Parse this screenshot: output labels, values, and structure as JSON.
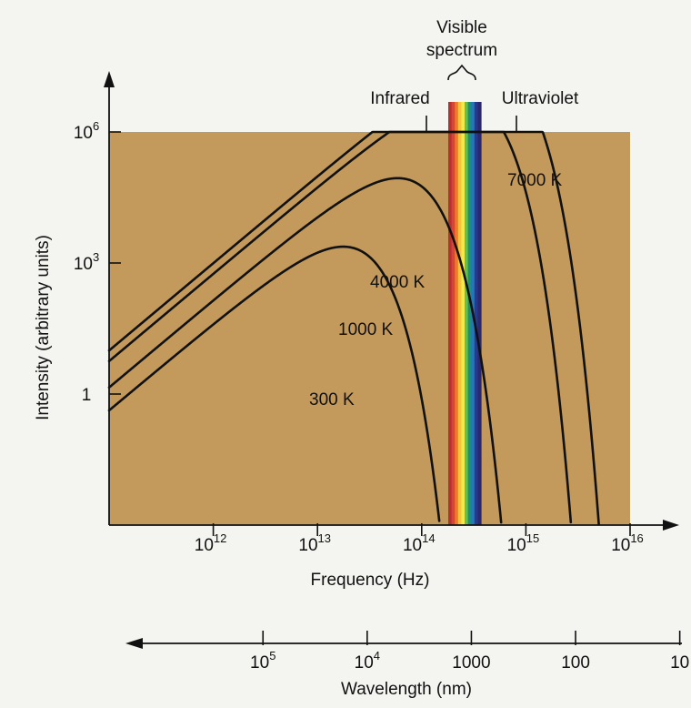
{
  "chart_data": {
    "type": "line",
    "title": "",
    "xlabel": "Frequency (Hz)",
    "ylabel": "Intensity (arbitrary units)",
    "x_scale": "log",
    "y_scale": "log",
    "xlim": [
      100000000000.0,
      1e+16
    ],
    "ylim": [
      0.001,
      1000000.0
    ],
    "x_ticks": [
      {
        "value": 1000000000000.0,
        "base": "10",
        "exp": "12"
      },
      {
        "value": 10000000000000.0,
        "base": "10",
        "exp": "13"
      },
      {
        "value": 100000000000000.0,
        "base": "10",
        "exp": "14"
      },
      {
        "value": 1000000000000000.0,
        "base": "10",
        "exp": "15"
      },
      {
        "value": 1e+16,
        "base": "10",
        "exp": "16"
      }
    ],
    "y_ticks": [
      {
        "value": 1,
        "base": "1",
        "exp": ""
      },
      {
        "value": 1000,
        "base": "10",
        "exp": "3"
      },
      {
        "value": 1000000,
        "base": "10",
        "exp": "6"
      }
    ],
    "secondary_x_axis": {
      "label": "Wavelength (nm)",
      "direction": "increasing to the left",
      "ticks": [
        {
          "value_nm": 100000,
          "base": "10",
          "exp": "5"
        },
        {
          "value_nm": 10000,
          "base": "10",
          "exp": "4"
        },
        {
          "value_nm": 1000,
          "base": "1000",
          "exp": ""
        },
        {
          "value_nm": 100,
          "base": "100",
          "exp": ""
        },
        {
          "value_nm": 10,
          "base": "10",
          "exp": ""
        }
      ]
    },
    "series": [
      {
        "name": "300 K",
        "temperature_K": 300,
        "color": "#111111"
      },
      {
        "name": "1000 K",
        "temperature_K": 1000,
        "color": "#111111"
      },
      {
        "name": "4000 K",
        "temperature_K": 4000,
        "color": "#111111"
      },
      {
        "name": "7000 K",
        "temperature_K": 7000,
        "color": "#111111"
      }
    ],
    "annotations": {
      "visible_label_line1": "Visible",
      "visible_label_line2": "spectrum",
      "infrared": "Infrared",
      "ultraviolet": "Ultraviolet",
      "visible_band_hz": [
        430000000000000.0,
        750000000000000.0
      ]
    },
    "plot_background": "#c49a5c",
    "spectrum_colors": [
      "#b2332f",
      "#d8433a",
      "#ee7a2c",
      "#f5c43a",
      "#f1ea4a",
      "#6cbf46",
      "#1f8f74",
      "#2378b8",
      "#243c8d",
      "#2d276b"
    ]
  }
}
